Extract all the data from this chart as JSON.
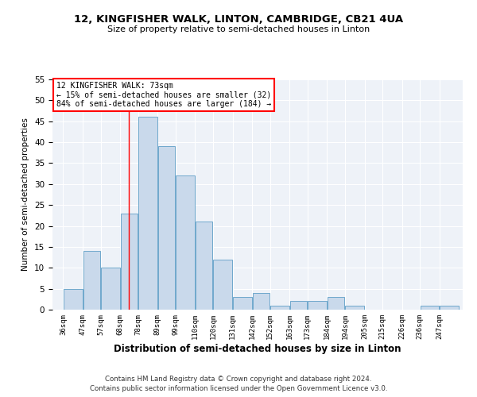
{
  "title1": "12, KINGFISHER WALK, LINTON, CAMBRIDGE, CB21 4UA",
  "title2": "Size of property relative to semi-detached houses in Linton",
  "xlabel": "Distribution of semi-detached houses by size in Linton",
  "ylabel": "Number of semi-detached properties",
  "bin_edges": [
    36,
    47,
    57,
    68,
    78,
    89,
    99,
    110,
    120,
    131,
    142,
    152,
    163,
    173,
    184,
    194,
    205,
    215,
    226,
    236,
    247,
    258
  ],
  "bin_labels": [
    "36sqm",
    "47sqm",
    "57sqm",
    "68sqm",
    "78sqm",
    "89sqm",
    "99sqm",
    "110sqm",
    "120sqm",
    "131sqm",
    "142sqm",
    "152sqm",
    "163sqm",
    "173sqm",
    "184sqm",
    "194sqm",
    "205sqm",
    "215sqm",
    "226sqm",
    "236sqm",
    "247sqm"
  ],
  "counts": [
    5,
    14,
    10,
    23,
    46,
    39,
    32,
    21,
    12,
    3,
    4,
    1,
    2,
    2,
    3,
    1,
    0,
    0,
    0,
    1,
    1
  ],
  "bar_color": "#c9d9eb",
  "bar_edge_color": "#6fa8cc",
  "red_line_x": 73,
  "annotation_text_line1": "12 KINGFISHER WALK: 73sqm",
  "annotation_text_line2": "← 15% of semi-detached houses are smaller (32)",
  "annotation_text_line3": "84% of semi-detached houses are larger (184) →",
  "footnote1": "Contains HM Land Registry data © Crown copyright and database right 2024.",
  "footnote2": "Contains public sector information licensed under the Open Government Licence v3.0.",
  "ylim": [
    0,
    55
  ],
  "yticks": [
    0,
    5,
    10,
    15,
    20,
    25,
    30,
    35,
    40,
    45,
    50,
    55
  ],
  "background_color": "#eef2f8"
}
